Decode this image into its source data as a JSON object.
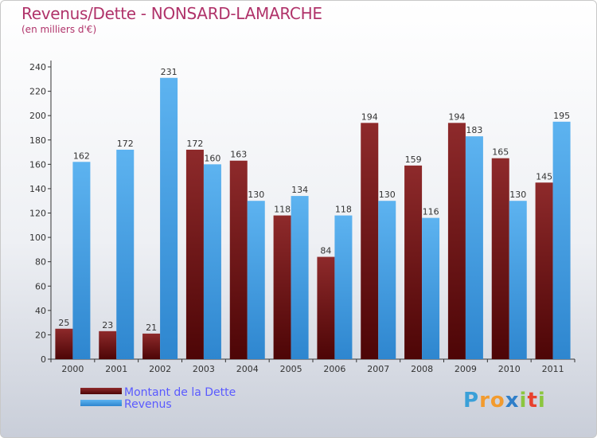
{
  "title": "Revenus/Dette - NONSARD-LAMARCHE",
  "subtitle": "(en milliers d'€)",
  "brand": {
    "text": "Proxiti",
    "letters": [
      "P",
      "r",
      "o",
      "x",
      "i",
      "t",
      "i"
    ],
    "colors": [
      "#3aa0d8",
      "#f29b2e",
      "#f29b2e",
      "#2f7fc9",
      "#8cc63f",
      "#e8412e",
      "#8cc63f"
    ]
  },
  "legend": [
    {
      "label": "Montant de la Dette",
      "color": "#6b0f10"
    },
    {
      "label": "Revenus",
      "color": "#4ea6e8"
    }
  ],
  "chart_data": {
    "type": "bar",
    "title": "Revenus/Dette - NONSARD-LAMARCHE",
    "subtitle": "(en milliers d'€)",
    "categories": [
      "2000",
      "2001",
      "2002",
      "2003",
      "2004",
      "2005",
      "2006",
      "2007",
      "2008",
      "2009",
      "2010",
      "2011"
    ],
    "series": [
      {
        "name": "Montant de la Dette",
        "color": "#6b0f10",
        "values": [
          25,
          23,
          21,
          172,
          163,
          118,
          84,
          194,
          159,
          194,
          165,
          145
        ]
      },
      {
        "name": "Revenus",
        "color": "#4ea6e8",
        "values": [
          162,
          172,
          231,
          160,
          130,
          134,
          118,
          130,
          116,
          183,
          130,
          195
        ]
      }
    ],
    "ylim": [
      0,
      240
    ],
    "yticks": [
      0,
      20,
      40,
      60,
      80,
      100,
      120,
      140,
      160,
      180,
      200,
      220,
      240
    ],
    "grid": false,
    "legend_position": "bottom-left"
  }
}
